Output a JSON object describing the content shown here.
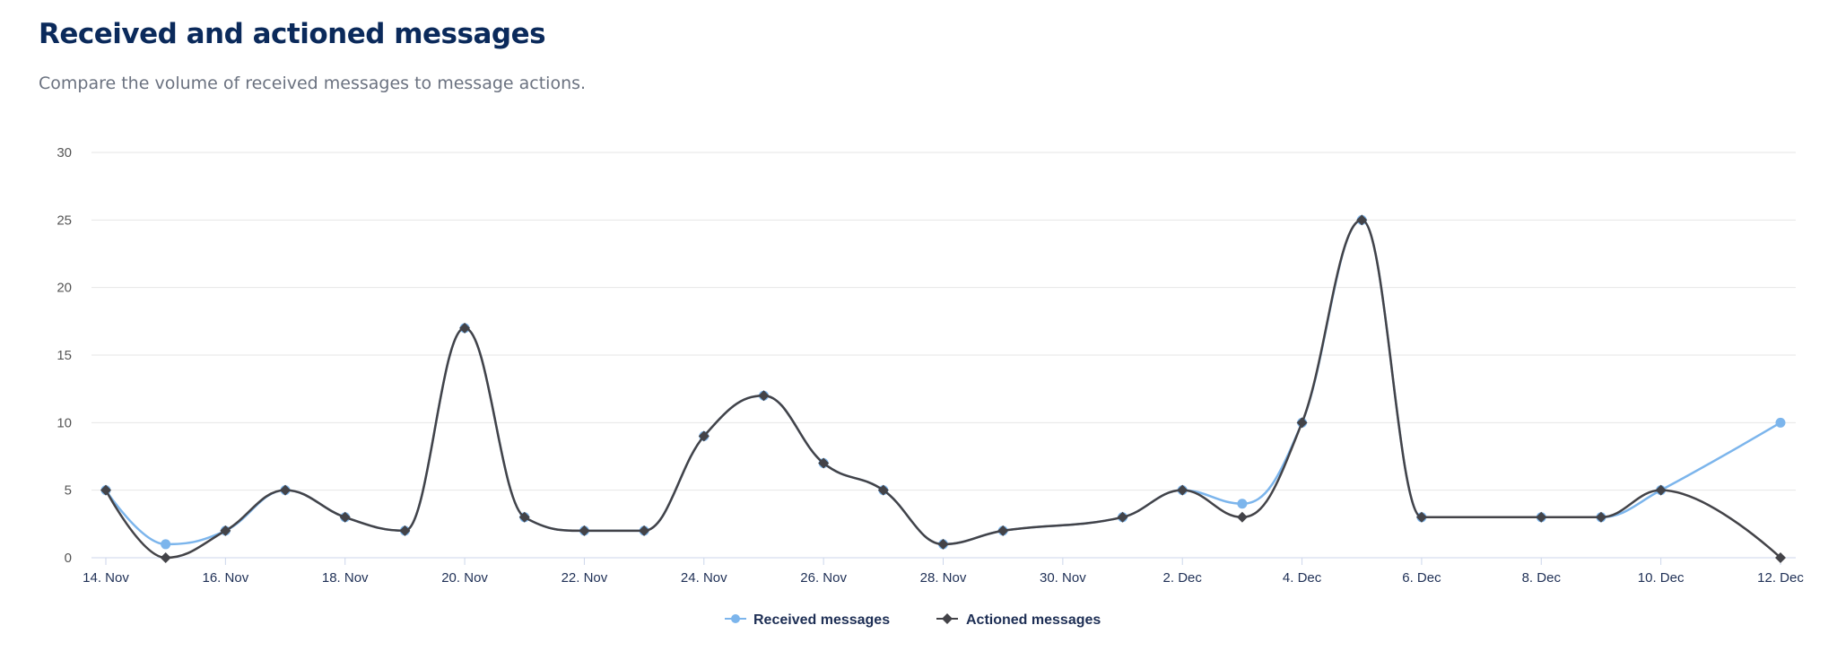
{
  "header": {
    "title": "Received and actioned messages",
    "subtitle": "Compare the volume of received messages to message actions."
  },
  "chart_data": {
    "type": "line",
    "smoothing": "spline",
    "title": "Received and actioned messages",
    "subtitle": "Compare the volume of received messages to message actions.",
    "xlabel": "",
    "ylabel": "",
    "ylim": [
      0,
      30
    ],
    "y_ticks": [
      "0",
      "5",
      "10",
      "15",
      "20",
      "25",
      "30"
    ],
    "x_ticks": [
      "14. Nov",
      "16. Nov",
      "18. Nov",
      "20. Nov",
      "22. Nov",
      "24. Nov",
      "26. Nov",
      "28. Nov",
      "30. Nov",
      "2. Dec",
      "4. Dec",
      "6. Dec",
      "8. Dec",
      "10. Dec",
      "12. Dec"
    ],
    "grid": true,
    "legend": "bottom-center",
    "x": [
      "14. Nov",
      "15. Nov",
      "16. Nov",
      "17. Nov",
      "18. Nov",
      "19. Nov",
      "20. Nov",
      "21. Nov",
      "22. Nov",
      "23. Nov",
      "24. Nov",
      "25. Nov",
      "26. Nov",
      "27. Nov",
      "28. Nov",
      "29. Nov",
      "1. Dec",
      "2. Dec",
      "3. Dec",
      "4. Dec",
      "5. Dec",
      "6. Dec",
      "8. Dec",
      "9. Dec",
      "10. Dec",
      "12. Dec"
    ],
    "series": [
      {
        "name": "Received messages",
        "color": "#7cb5ec",
        "marker": "circle",
        "values": [
          5,
          1,
          2,
          5,
          3,
          2,
          17,
          3,
          2,
          2,
          9,
          12,
          7,
          5,
          1,
          2,
          3,
          5,
          4,
          10,
          25,
          3,
          3,
          3,
          5,
          10
        ]
      },
      {
        "name": "Actioned messages",
        "color": "#434348",
        "marker": "diamond",
        "values": [
          5,
          0,
          2,
          5,
          3,
          2,
          17,
          3,
          2,
          2,
          9,
          12,
          7,
          5,
          1,
          2,
          3,
          5,
          3,
          10,
          25,
          3,
          3,
          3,
          5,
          0
        ]
      }
    ]
  }
}
